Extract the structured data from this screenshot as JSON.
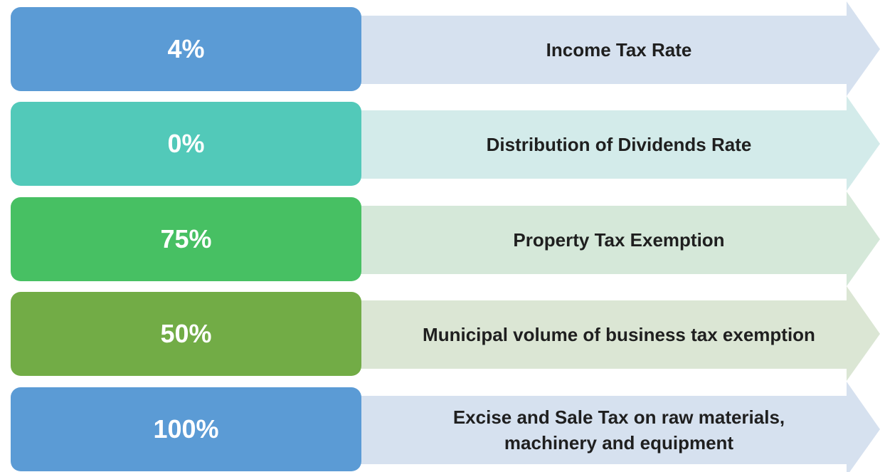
{
  "items": [
    {
      "value": "4%",
      "label": "Income Tax Rate",
      "color": "#5b9bd5",
      "arrow_color": "#d6e1ef"
    },
    {
      "value": "0%",
      "label": "Distribution of Dividends Rate",
      "color": "#52c9b9",
      "arrow_color": "#d3ebea"
    },
    {
      "value": "75%",
      "label": "Property Tax Exemption",
      "color": "#47c063",
      "arrow_color": "#d5e8d9"
    },
    {
      "value": "50%",
      "label": "Municipal volume of business tax exemption",
      "color": "#72ac46",
      "arrow_color": "#dbe6d4"
    },
    {
      "value": "100%",
      "label": "Excise and Sale Tax on raw materials, machinery and equipment",
      "color": "#5b9bd5",
      "arrow_color": "#d6e1ef"
    }
  ]
}
